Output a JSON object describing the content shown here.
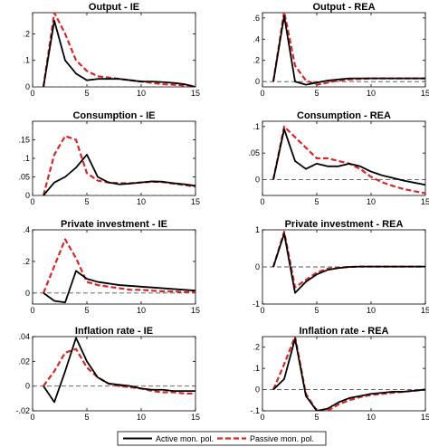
{
  "chart_data": [
    {
      "type": "line",
      "title": "Output - IE",
      "xlim": [
        0,
        15
      ],
      "ylim": [
        0,
        0.28
      ],
      "xticks": [
        0,
        5,
        10,
        15
      ],
      "yticks": [
        0,
        0.1,
        0.2
      ],
      "x": [
        1,
        2,
        3,
        4,
        5,
        6,
        7,
        8,
        9,
        10,
        11,
        12,
        13,
        14,
        15
      ],
      "series": [
        {
          "name": "Active mon. pol.",
          "color": "#000000",
          "dash": "solid",
          "values": [
            0,
            0.25,
            0.1,
            0.05,
            0.025,
            0.03,
            0.03,
            0.03,
            0.025,
            0.02,
            0.02,
            0.018,
            0.015,
            0.01,
            0
          ]
        },
        {
          "name": "Passive mon. pol.",
          "color": "#d62728",
          "dash": "dashed",
          "values": [
            0,
            0.28,
            0.2,
            0.1,
            0.06,
            0.04,
            0.035,
            0.03,
            0.025,
            0.02,
            0.015,
            0.01,
            0.008,
            0.005,
            0.003
          ]
        }
      ]
    },
    {
      "type": "line",
      "title": "Output - REA",
      "xlim": [
        0,
        15
      ],
      "ylim": [
        -0.05,
        0.65
      ],
      "xticks": [
        0,
        5,
        10,
        15
      ],
      "yticks": [
        0,
        0.2,
        0.4,
        0.6
      ],
      "x": [
        1,
        2,
        3,
        4,
        5,
        6,
        7,
        8,
        9,
        10,
        11,
        12,
        13,
        14,
        15
      ],
      "series": [
        {
          "name": "Active mon. pol.",
          "color": "#000000",
          "dash": "solid",
          "values": [
            0,
            0.62,
            0.0,
            -0.03,
            -0.01,
            0.01,
            0.02,
            0.03,
            0.03,
            0.03,
            0.03,
            0.03,
            0.03,
            0.03,
            0.03
          ]
        },
        {
          "name": "Passive mon. pol.",
          "color": "#d62728",
          "dash": "dashed",
          "values": [
            0,
            0.66,
            0.15,
            0.01,
            -0.03,
            -0.01,
            0.01,
            0.02,
            0.025,
            0.03,
            0.03,
            0.03,
            0.03,
            0.03,
            0.03
          ]
        }
      ]
    },
    {
      "type": "line",
      "title": "Consumption - IE",
      "xlim": [
        0,
        15
      ],
      "ylim": [
        0,
        0.2
      ],
      "xticks": [
        0,
        5,
        10,
        15
      ],
      "yticks": [
        0,
        0.05,
        0.1,
        0.15
      ],
      "x": [
        1,
        2,
        3,
        4,
        5,
        6,
        7,
        8,
        9,
        10,
        11,
        12,
        13,
        14,
        15
      ],
      "series": [
        {
          "name": "Active mon. pol.",
          "color": "#000000",
          "dash": "solid",
          "values": [
            0,
            0.035,
            0.05,
            0.075,
            0.11,
            0.05,
            0.035,
            0.03,
            0.032,
            0.035,
            0.038,
            0.037,
            0.033,
            0.03,
            0.026
          ]
        },
        {
          "name": "Passive mon. pol.",
          "color": "#d62728",
          "dash": "dashed",
          "values": [
            0,
            0.11,
            0.16,
            0.15,
            0.06,
            0.04,
            0.035,
            0.033,
            0.033,
            0.035,
            0.037,
            0.036,
            0.032,
            0.028,
            0.024
          ]
        }
      ]
    },
    {
      "type": "line",
      "title": "Consumption - REA",
      "xlim": [
        0,
        15
      ],
      "ylim": [
        -0.03,
        0.11
      ],
      "xticks": [
        0,
        5,
        10,
        15
      ],
      "yticks": [
        0,
        0.05,
        0.1
      ],
      "x": [
        1,
        2,
        3,
        4,
        5,
        6,
        7,
        8,
        9,
        10,
        11,
        12,
        13,
        14,
        15
      ],
      "series": [
        {
          "name": "Active mon. pol.",
          "color": "#000000",
          "dash": "solid",
          "values": [
            0,
            0.095,
            0.035,
            0.02,
            0.03,
            0.025,
            0.025,
            0.03,
            0.025,
            0.015,
            0.008,
            0.003,
            -0.002,
            -0.006,
            -0.01
          ]
        },
        {
          "name": "Passive mon. pol.",
          "color": "#d62728",
          "dash": "dashed",
          "values": [
            0,
            0.1,
            0.08,
            0.06,
            0.04,
            0.04,
            0.035,
            0.03,
            0.02,
            0.005,
            -0.005,
            -0.012,
            -0.018,
            -0.022,
            -0.026
          ]
        }
      ]
    },
    {
      "type": "line",
      "title": "Private investment - IE",
      "xlim": [
        0,
        15
      ],
      "ylim": [
        -0.07,
        0.4
      ],
      "xticks": [
        0,
        5,
        10,
        15
      ],
      "yticks": [
        0,
        0.2,
        0.4
      ],
      "x": [
        1,
        2,
        3,
        4,
        5,
        6,
        7,
        8,
        9,
        10,
        11,
        12,
        13,
        14,
        15
      ],
      "series": [
        {
          "name": "Active mon. pol.",
          "color": "#000000",
          "dash": "solid",
          "values": [
            0,
            -0.05,
            -0.06,
            0.14,
            0.09,
            0.07,
            0.06,
            0.05,
            0.045,
            0.04,
            0.035,
            0.03,
            0.025,
            0.02,
            0.015
          ]
        },
        {
          "name": "Passive mon. pol.",
          "color": "#d62728",
          "dash": "dashed",
          "values": [
            0,
            0.17,
            0.34,
            0.22,
            0.07,
            0.05,
            0.04,
            0.03,
            0.02,
            0.02,
            0.015,
            0.01,
            0.01,
            0.005,
            0.005
          ]
        }
      ]
    },
    {
      "type": "line",
      "title": "Private investment - REA",
      "xlim": [
        0,
        15
      ],
      "ylim": [
        -1,
        1
      ],
      "xticks": [
        0,
        5,
        10,
        15
      ],
      "yticks": [
        -1,
        0,
        1
      ],
      "x": [
        1,
        2,
        3,
        4,
        5,
        6,
        7,
        8,
        9,
        10,
        11,
        12,
        13,
        14,
        15
      ],
      "series": [
        {
          "name": "Active mon. pol.",
          "color": "#000000",
          "dash": "solid",
          "values": [
            0,
            0.9,
            -0.7,
            -0.4,
            -0.2,
            -0.08,
            -0.03,
            0.0,
            0.01,
            0.01,
            0.01,
            0.01,
            0.01,
            0.01,
            0.01
          ]
        },
        {
          "name": "Passive mon. pol.",
          "color": "#d62728",
          "dash": "dashed",
          "values": [
            0,
            0.95,
            -0.55,
            -0.35,
            -0.15,
            -0.05,
            -0.02,
            0.0,
            0.01,
            0.01,
            0.01,
            0.01,
            0.01,
            0.01,
            0.01
          ]
        }
      ]
    },
    {
      "type": "line",
      "title": "Inflation rate - IE",
      "xlim": [
        0,
        15
      ],
      "ylim": [
        -0.02,
        0.04
      ],
      "xticks": [
        0,
        5,
        10,
        15
      ],
      "yticks": [
        -0.02,
        0,
        0.02,
        0.04
      ],
      "x": [
        1,
        2,
        3,
        4,
        5,
        6,
        7,
        8,
        9,
        10,
        11,
        12,
        13,
        14,
        15
      ],
      "series": [
        {
          "name": "Active mon. pol.",
          "color": "#000000",
          "dash": "solid",
          "values": [
            0,
            -0.013,
            0.012,
            0.039,
            0.02,
            0.007,
            0.002,
            0.001,
            0.0,
            -0.002,
            -0.003,
            -0.003,
            -0.004,
            -0.004,
            -0.004
          ]
        },
        {
          "name": "Passive mon. pol.",
          "color": "#d62728",
          "dash": "dashed",
          "values": [
            0,
            0.012,
            0.027,
            0.03,
            0.015,
            0.007,
            0.002,
            0.0,
            -0.001,
            -0.002,
            -0.004,
            -0.005,
            -0.005,
            -0.006,
            -0.006
          ]
        }
      ]
    },
    {
      "type": "line",
      "title": "Inflation rate - REA",
      "xlim": [
        0,
        15
      ],
      "ylim": [
        -0.1,
        0.25
      ],
      "xticks": [
        0,
        5,
        10,
        15
      ],
      "yticks": [
        -0.1,
        0,
        0.1,
        0.2
      ],
      "x": [
        1,
        2,
        3,
        4,
        5,
        6,
        7,
        8,
        9,
        10,
        11,
        12,
        13,
        14,
        15
      ],
      "series": [
        {
          "name": "Active mon. pol.",
          "color": "#000000",
          "dash": "solid",
          "values": [
            0,
            0.05,
            0.24,
            -0.03,
            -0.1,
            -0.09,
            -0.06,
            -0.04,
            -0.03,
            -0.02,
            -0.015,
            -0.01,
            -0.01,
            -0.005,
            0.0
          ]
        },
        {
          "name": "Passive mon. pol.",
          "color": "#d62728",
          "dash": "dashed",
          "values": [
            0,
            0.12,
            0.25,
            -0.02,
            -0.1,
            -0.1,
            -0.07,
            -0.05,
            -0.035,
            -0.025,
            -0.02,
            -0.015,
            -0.01,
            -0.005,
            0.0
          ]
        }
      ]
    }
  ],
  "legend": {
    "location": "bottom-center",
    "entries": [
      {
        "label": "Active mon. pol.",
        "color": "#000000",
        "dash": "solid"
      },
      {
        "label": "Passive mon. pol.",
        "color": "#d62728",
        "dash": "dashed"
      }
    ]
  },
  "zero_line_color": "#555555"
}
